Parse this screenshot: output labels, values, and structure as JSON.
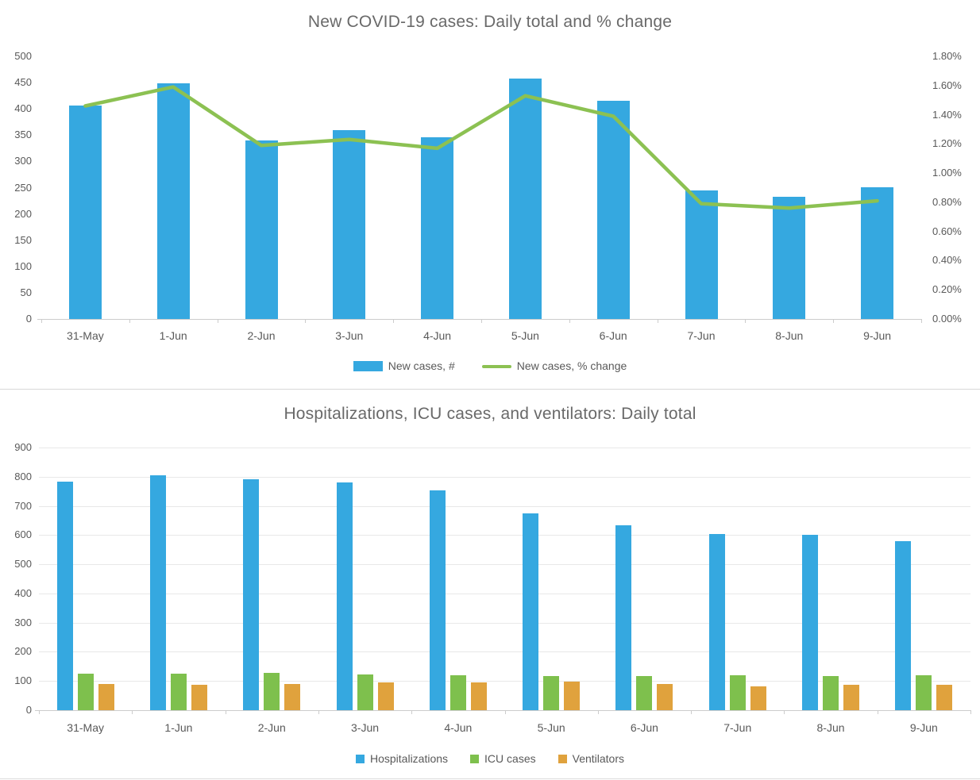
{
  "colors": {
    "bar_blue": "#35a8e0",
    "icu_green": "#7ec04d",
    "line_green": "#8cc152",
    "vent_orange": "#e0a23d",
    "label_text": "#595959",
    "title_text": "#696969",
    "axis_line": "#cccccc",
    "gridline": "#e8e8e8",
    "divider": "#d9d9d9",
    "bottom_edge": "#dcdcdc"
  },
  "chart_data": [
    {
      "type": "combo-bar-line",
      "title": "New COVID-19 cases: Daily total and % change",
      "categories": [
        "31-May",
        "1-Jun",
        "2-Jun",
        "3-Jun",
        "4-Jun",
        "5-Jun",
        "6-Jun",
        "7-Jun",
        "8-Jun",
        "9-Jun"
      ],
      "series": [
        {
          "name": "New cases, #",
          "type": "bar",
          "axis": "left",
          "color": "#35a8e0",
          "values": [
            406,
            449,
            340,
            359,
            346,
            457,
            416,
            245,
            232,
            251
          ]
        },
        {
          "name": "New cases, % change",
          "type": "line",
          "axis": "right",
          "color": "#8cc152",
          "values": [
            1.46,
            1.59,
            1.19,
            1.23,
            1.17,
            1.53,
            1.39,
            0.79,
            0.76,
            0.81
          ]
        }
      ],
      "left_axis": {
        "min": 0,
        "max": 500,
        "tick_labels": [
          "500",
          "450",
          "400",
          "350",
          "300",
          "250",
          "200",
          "150",
          "100",
          "50",
          "0"
        ]
      },
      "right_axis": {
        "min": 0,
        "max": 1.8,
        "tick_labels": [
          "1.80%",
          "1.60%",
          "1.40%",
          "1.20%",
          "1.00%",
          "0.80%",
          "0.60%",
          "0.40%",
          "0.20%",
          "0.00%"
        ]
      },
      "grid": false,
      "legend_position": "bottom"
    },
    {
      "type": "bar",
      "title": "Hospitalizations, ICU cases, and ventilators: Daily total",
      "categories": [
        "31-May",
        "1-Jun",
        "2-Jun",
        "3-Jun",
        "4-Jun",
        "5-Jun",
        "6-Jun",
        "7-Jun",
        "8-Jun",
        "9-Jun"
      ],
      "series": [
        {
          "name": "Hospitalizations",
          "type": "bar",
          "color": "#35a8e0",
          "values": [
            782,
            805,
            792,
            780,
            752,
            675,
            634,
            604,
            600,
            579
          ]
        },
        {
          "name": "ICU cases",
          "type": "bar",
          "color": "#7ec04d",
          "values": [
            124,
            124,
            127,
            122,
            119,
            116,
            116,
            119,
            116,
            119
          ]
        },
        {
          "name": "Ventilators",
          "type": "bar",
          "color": "#e0a23d",
          "values": [
            89,
            86,
            91,
            94,
            94,
            97,
            90,
            81,
            88,
            86
          ]
        }
      ],
      "left_axis": {
        "min": 0,
        "max": 900,
        "tick_labels": [
          "900",
          "800",
          "700",
          "600",
          "500",
          "400",
          "300",
          "200",
          "100",
          "0"
        ]
      },
      "grid": true,
      "legend_position": "bottom"
    }
  ]
}
